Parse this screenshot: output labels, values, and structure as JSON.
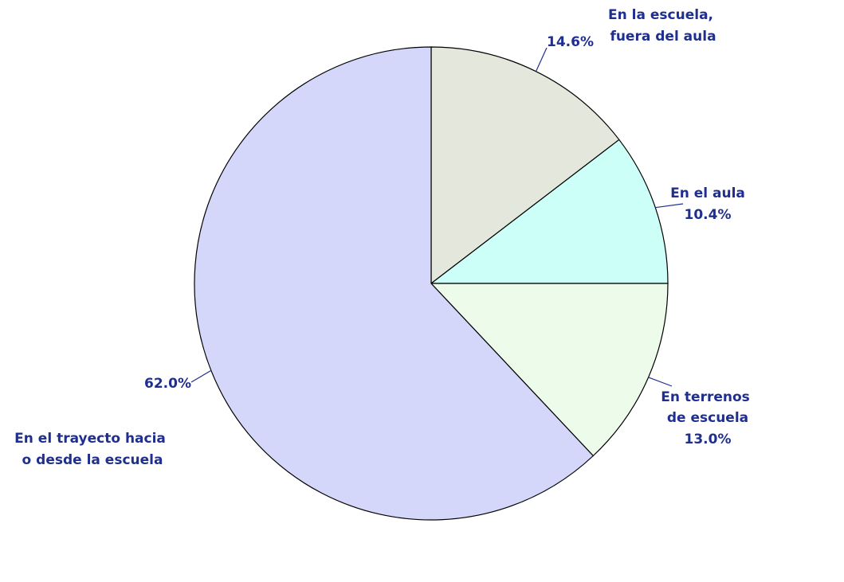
{
  "chart_data": {
    "type": "pie",
    "title": "",
    "start": "12 o'clock, clockwise",
    "slices": [
      {
        "name_lines": [
          "En la escuela,",
          "fuera del aula"
        ],
        "value": 14.6,
        "value_label": "14.6%",
        "color": "#e4e8dc"
      },
      {
        "name_lines": [
          "En el aula"
        ],
        "value": 10.4,
        "value_label": "10.4%",
        "color": "#ccfff7"
      },
      {
        "name_lines": [
          "En terrenos",
          "de escuela"
        ],
        "value": 13.0,
        "value_label": "13.0%",
        "color": "#edfbea"
      },
      {
        "name_lines": [
          "En el trayecto hacia",
          "o desde la escuela"
        ],
        "value": 62.0,
        "value_label": "62.0%",
        "color": "#d5d7fa"
      }
    ],
    "label_color": "#1f2f8f",
    "outline_color": "#000000"
  }
}
